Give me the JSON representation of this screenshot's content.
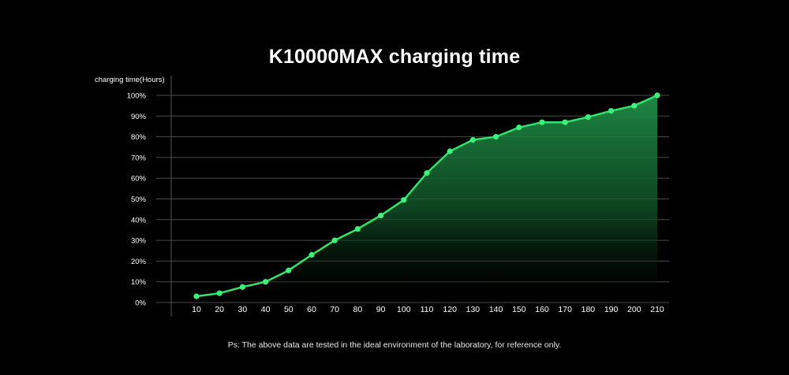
{
  "chart_data": {
    "type": "area",
    "title": "K10000MAX charging time",
    "ylabel": "charging time(Hours)",
    "xlabel": "",
    "x": [
      10,
      20,
      30,
      40,
      50,
      60,
      70,
      80,
      90,
      100,
      110,
      120,
      130,
      140,
      150,
      160,
      170,
      180,
      190,
      200,
      210
    ],
    "x_tick_labels": [
      "10",
      "20",
      "30",
      "40",
      "50",
      "60",
      "70",
      "80",
      "90",
      "100",
      "110",
      "120",
      "130",
      "140",
      "150",
      "160",
      "170",
      "180",
      "190",
      "200",
      "210"
    ],
    "y_tick_labels": [
      "0%",
      "10%",
      "20%",
      "30%",
      "40%",
      "50%",
      "60%",
      "70%",
      "80%",
      "90%",
      "100%"
    ],
    "series": [
      {
        "values": [
          3,
          4.5,
          7.5,
          10,
          15.5,
          23,
          30,
          35.5,
          42,
          49.5,
          62.5,
          73,
          78.5,
          80,
          84.5,
          87,
          87,
          89.5,
          92.5,
          95,
          100
        ]
      }
    ],
    "ylim": [
      0,
      100
    ],
    "grid": true,
    "colors": {
      "background": "#000000",
      "line": "#33e36b",
      "marker": "#3df27a",
      "fill_top": "#1f8f47",
      "grid": "#4a4a4a"
    }
  },
  "footnote": "Ps: The above data are tested in the ideal environment of the laboratory, for reference only."
}
